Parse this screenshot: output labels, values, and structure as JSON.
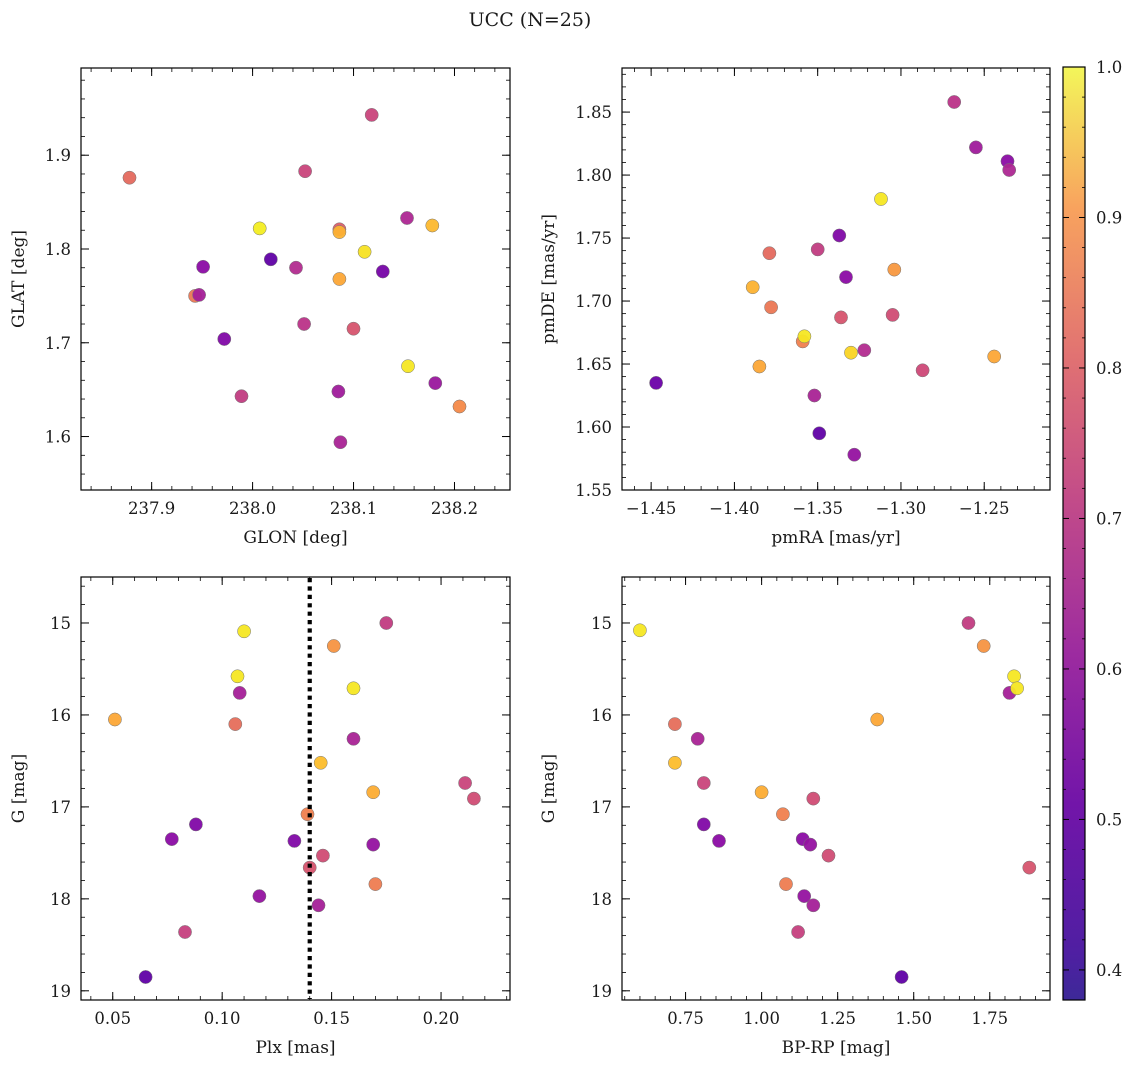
{
  "title": "UCC (N=25)",
  "colorbar": {
    "range": [
      0.38,
      1.0
    ],
    "ticks": [
      0.4,
      0.5,
      0.6,
      0.7,
      0.8,
      0.9,
      1.0
    ],
    "tick_labels": [
      "0.4",
      "0.5",
      "0.6",
      "0.7",
      "0.8",
      "0.9",
      "1.0"
    ],
    "colormap": "plasma"
  },
  "chart_data": [
    {
      "type": "scatter",
      "xlabel": "GLON [deg]",
      "ylabel": "GLAT [deg]",
      "xlim": [
        237.83,
        238.255
      ],
      "ylim": [
        1.543,
        1.993
      ],
      "xticks": [
        237.9,
        238.0,
        238.1,
        238.2
      ],
      "xtick_labels": [
        "237.9",
        "238.0",
        "238.1",
        "238.2"
      ],
      "yticks": [
        1.6,
        1.7,
        1.8,
        1.9
      ],
      "ytick_labels": [
        "1.6",
        "1.7",
        "1.8",
        "1.9"
      ],
      "points": [
        {
          "x": 237.878,
          "y": 1.876,
          "c": 0.73
        },
        {
          "x": 237.943,
          "y": 1.75,
          "c": 0.76
        },
        {
          "x": 237.947,
          "y": 1.751,
          "c": 0.55
        },
        {
          "x": 237.951,
          "y": 1.781,
          "c": 0.5
        },
        {
          "x": 237.972,
          "y": 1.704,
          "c": 0.48
        },
        {
          "x": 237.989,
          "y": 1.643,
          "c": 0.62
        },
        {
          "x": 238.007,
          "y": 1.822,
          "c": 0.98
        },
        {
          "x": 238.018,
          "y": 1.789,
          "c": 0.42
        },
        {
          "x": 238.043,
          "y": 1.78,
          "c": 0.58
        },
        {
          "x": 238.051,
          "y": 1.72,
          "c": 0.6
        },
        {
          "x": 238.052,
          "y": 1.883,
          "c": 0.64
        },
        {
          "x": 238.085,
          "y": 1.648,
          "c": 0.54
        },
        {
          "x": 238.086,
          "y": 1.768,
          "c": 0.86
        },
        {
          "x": 238.086,
          "y": 1.821,
          "c": 0.7
        },
        {
          "x": 238.086,
          "y": 1.818,
          "c": 0.88
        },
        {
          "x": 238.087,
          "y": 1.594,
          "c": 0.56
        },
        {
          "x": 238.1,
          "y": 1.715,
          "c": 0.68
        },
        {
          "x": 238.111,
          "y": 1.797,
          "c": 0.96
        },
        {
          "x": 238.118,
          "y": 1.943,
          "c": 0.64
        },
        {
          "x": 238.129,
          "y": 1.776,
          "c": 0.46
        },
        {
          "x": 238.153,
          "y": 1.833,
          "c": 0.57
        },
        {
          "x": 238.154,
          "y": 1.675,
          "c": 0.97
        },
        {
          "x": 238.178,
          "y": 1.825,
          "c": 0.89
        },
        {
          "x": 238.181,
          "y": 1.657,
          "c": 0.53
        },
        {
          "x": 238.205,
          "y": 1.632,
          "c": 0.8
        }
      ]
    },
    {
      "type": "scatter",
      "xlabel": "pmRA [mas/yr]",
      "ylabel": "pmDE [mas/yr]",
      "xlim": [
        -1.4675,
        -1.2105
      ],
      "ylim": [
        1.55,
        1.885
      ],
      "xticks": [
        -1.45,
        -1.4,
        -1.35,
        -1.3,
        -1.25
      ],
      "xtick_labels": [
        "−1.45",
        "−1.40",
        "−1.35",
        "−1.30",
        "−1.25"
      ],
      "yticks": [
        1.55,
        1.6,
        1.65,
        1.7,
        1.75,
        1.8,
        1.85
      ],
      "ytick_labels": [
        "1.55",
        "1.60",
        "1.65",
        "1.70",
        "1.75",
        "1.80",
        "1.85"
      ],
      "points": [
        {
          "x": -1.447,
          "y": 1.635,
          "c": 0.44
        },
        {
          "x": -1.389,
          "y": 1.711,
          "c": 0.88
        },
        {
          "x": -1.385,
          "y": 1.648,
          "c": 0.86
        },
        {
          "x": -1.379,
          "y": 1.738,
          "c": 0.73
        },
        {
          "x": -1.378,
          "y": 1.695,
          "c": 0.76
        },
        {
          "x": -1.359,
          "y": 1.668,
          "c": 0.78
        },
        {
          "x": -1.358,
          "y": 1.672,
          "c": 0.97
        },
        {
          "x": -1.352,
          "y": 1.625,
          "c": 0.56
        },
        {
          "x": -1.35,
          "y": 1.741,
          "c": 0.62
        },
        {
          "x": -1.349,
          "y": 1.595,
          "c": 0.42
        },
        {
          "x": -1.337,
          "y": 1.752,
          "c": 0.48
        },
        {
          "x": -1.336,
          "y": 1.687,
          "c": 0.68
        },
        {
          "x": -1.333,
          "y": 1.719,
          "c": 0.5
        },
        {
          "x": -1.33,
          "y": 1.659,
          "c": 0.94
        },
        {
          "x": -1.328,
          "y": 1.578,
          "c": 0.52
        },
        {
          "x": -1.322,
          "y": 1.661,
          "c": 0.58
        },
        {
          "x": -1.312,
          "y": 1.781,
          "c": 0.97
        },
        {
          "x": -1.305,
          "y": 1.689,
          "c": 0.66
        },
        {
          "x": -1.304,
          "y": 1.725,
          "c": 0.83
        },
        {
          "x": -1.287,
          "y": 1.645,
          "c": 0.65
        },
        {
          "x": -1.268,
          "y": 1.858,
          "c": 0.6
        },
        {
          "x": -1.255,
          "y": 1.822,
          "c": 0.54
        },
        {
          "x": -1.244,
          "y": 1.656,
          "c": 0.86
        },
        {
          "x": -1.236,
          "y": 1.811,
          "c": 0.5
        },
        {
          "x": -1.235,
          "y": 1.804,
          "c": 0.57
        }
      ]
    },
    {
      "type": "scatter",
      "xlabel": "Plx [mas]",
      "ylabel": "G [mag]",
      "xlim": [
        0.0355,
        0.2315
      ],
      "ylim": [
        19.1,
        14.5
      ],
      "y_inverted": true,
      "xticks": [
        0.05,
        0.1,
        0.15,
        0.2
      ],
      "xtick_labels": [
        "0.05",
        "0.10",
        "0.15",
        "0.20"
      ],
      "yticks": [
        15,
        16,
        17,
        18,
        19
      ],
      "ytick_labels": [
        "15",
        "16",
        "17",
        "18",
        "19"
      ],
      "vline": {
        "x": 0.14,
        "style": "dotted"
      },
      "points": [
        {
          "x": 0.051,
          "y": 16.05,
          "c": 0.86
        },
        {
          "x": 0.065,
          "y": 18.85,
          "c": 0.42
        },
        {
          "x": 0.077,
          "y": 17.35,
          "c": 0.5
        },
        {
          "x": 0.083,
          "y": 18.36,
          "c": 0.63
        },
        {
          "x": 0.088,
          "y": 17.19,
          "c": 0.48
        },
        {
          "x": 0.106,
          "y": 16.1,
          "c": 0.74
        },
        {
          "x": 0.107,
          "y": 15.58,
          "c": 0.97
        },
        {
          "x": 0.108,
          "y": 15.76,
          "c": 0.55
        },
        {
          "x": 0.11,
          "y": 15.09,
          "c": 0.97
        },
        {
          "x": 0.117,
          "y": 17.97,
          "c": 0.52
        },
        {
          "x": 0.133,
          "y": 17.37,
          "c": 0.48
        },
        {
          "x": 0.139,
          "y": 17.08,
          "c": 0.78
        },
        {
          "x": 0.14,
          "y": 17.66,
          "c": 0.68
        },
        {
          "x": 0.144,
          "y": 18.07,
          "c": 0.55
        },
        {
          "x": 0.145,
          "y": 16.52,
          "c": 0.9
        },
        {
          "x": 0.146,
          "y": 17.53,
          "c": 0.66
        },
        {
          "x": 0.151,
          "y": 15.25,
          "c": 0.82
        },
        {
          "x": 0.16,
          "y": 15.71,
          "c": 0.97
        },
        {
          "x": 0.16,
          "y": 16.26,
          "c": 0.56
        },
        {
          "x": 0.169,
          "y": 17.41,
          "c": 0.52
        },
        {
          "x": 0.169,
          "y": 16.84,
          "c": 0.87
        },
        {
          "x": 0.17,
          "y": 17.84,
          "c": 0.77
        },
        {
          "x": 0.175,
          "y": 15.0,
          "c": 0.62
        },
        {
          "x": 0.211,
          "y": 16.74,
          "c": 0.64
        },
        {
          "x": 0.215,
          "y": 16.91,
          "c": 0.66
        }
      ]
    },
    {
      "type": "scatter",
      "xlabel": "BP-RP [mag]",
      "ylabel": "G [mag]",
      "xlim": [
        0.541,
        1.948
      ],
      "ylim": [
        19.1,
        14.5
      ],
      "y_inverted": true,
      "xticks": [
        0.75,
        1.0,
        1.25,
        1.5,
        1.75
      ],
      "xtick_labels": [
        "0.75",
        "1.00",
        "1.25",
        "1.50",
        "1.75"
      ],
      "yticks": [
        15,
        16,
        17,
        18,
        19
      ],
      "ytick_labels": [
        "15",
        "16",
        "17",
        "18",
        "19"
      ],
      "points": [
        {
          "x": 0.6,
          "y": 15.08,
          "c": 0.97
        },
        {
          "x": 0.715,
          "y": 16.1,
          "c": 0.74
        },
        {
          "x": 0.715,
          "y": 16.52,
          "c": 0.9
        },
        {
          "x": 0.79,
          "y": 16.26,
          "c": 0.56
        },
        {
          "x": 0.81,
          "y": 16.74,
          "c": 0.64
        },
        {
          "x": 0.81,
          "y": 17.19,
          "c": 0.48
        },
        {
          "x": 0.86,
          "y": 17.37,
          "c": 0.5
        },
        {
          "x": 1.0,
          "y": 16.84,
          "c": 0.87
        },
        {
          "x": 1.07,
          "y": 17.08,
          "c": 0.78
        },
        {
          "x": 1.08,
          "y": 17.84,
          "c": 0.77
        },
        {
          "x": 1.12,
          "y": 18.36,
          "c": 0.63
        },
        {
          "x": 1.135,
          "y": 17.35,
          "c": 0.5
        },
        {
          "x": 1.14,
          "y": 17.97,
          "c": 0.52
        },
        {
          "x": 1.16,
          "y": 17.41,
          "c": 0.52
        },
        {
          "x": 1.17,
          "y": 18.07,
          "c": 0.55
        },
        {
          "x": 1.17,
          "y": 16.91,
          "c": 0.66
        },
        {
          "x": 1.22,
          "y": 17.53,
          "c": 0.66
        },
        {
          "x": 1.38,
          "y": 16.05,
          "c": 0.86
        },
        {
          "x": 1.46,
          "y": 18.85,
          "c": 0.42
        },
        {
          "x": 1.68,
          "y": 15.0,
          "c": 0.62
        },
        {
          "x": 1.73,
          "y": 15.25,
          "c": 0.82
        },
        {
          "x": 1.815,
          "y": 15.76,
          "c": 0.55
        },
        {
          "x": 1.83,
          "y": 15.58,
          "c": 0.97
        },
        {
          "x": 1.84,
          "y": 15.71,
          "c": 0.97
        },
        {
          "x": 1.88,
          "y": 17.66,
          "c": 0.68
        }
      ]
    }
  ]
}
